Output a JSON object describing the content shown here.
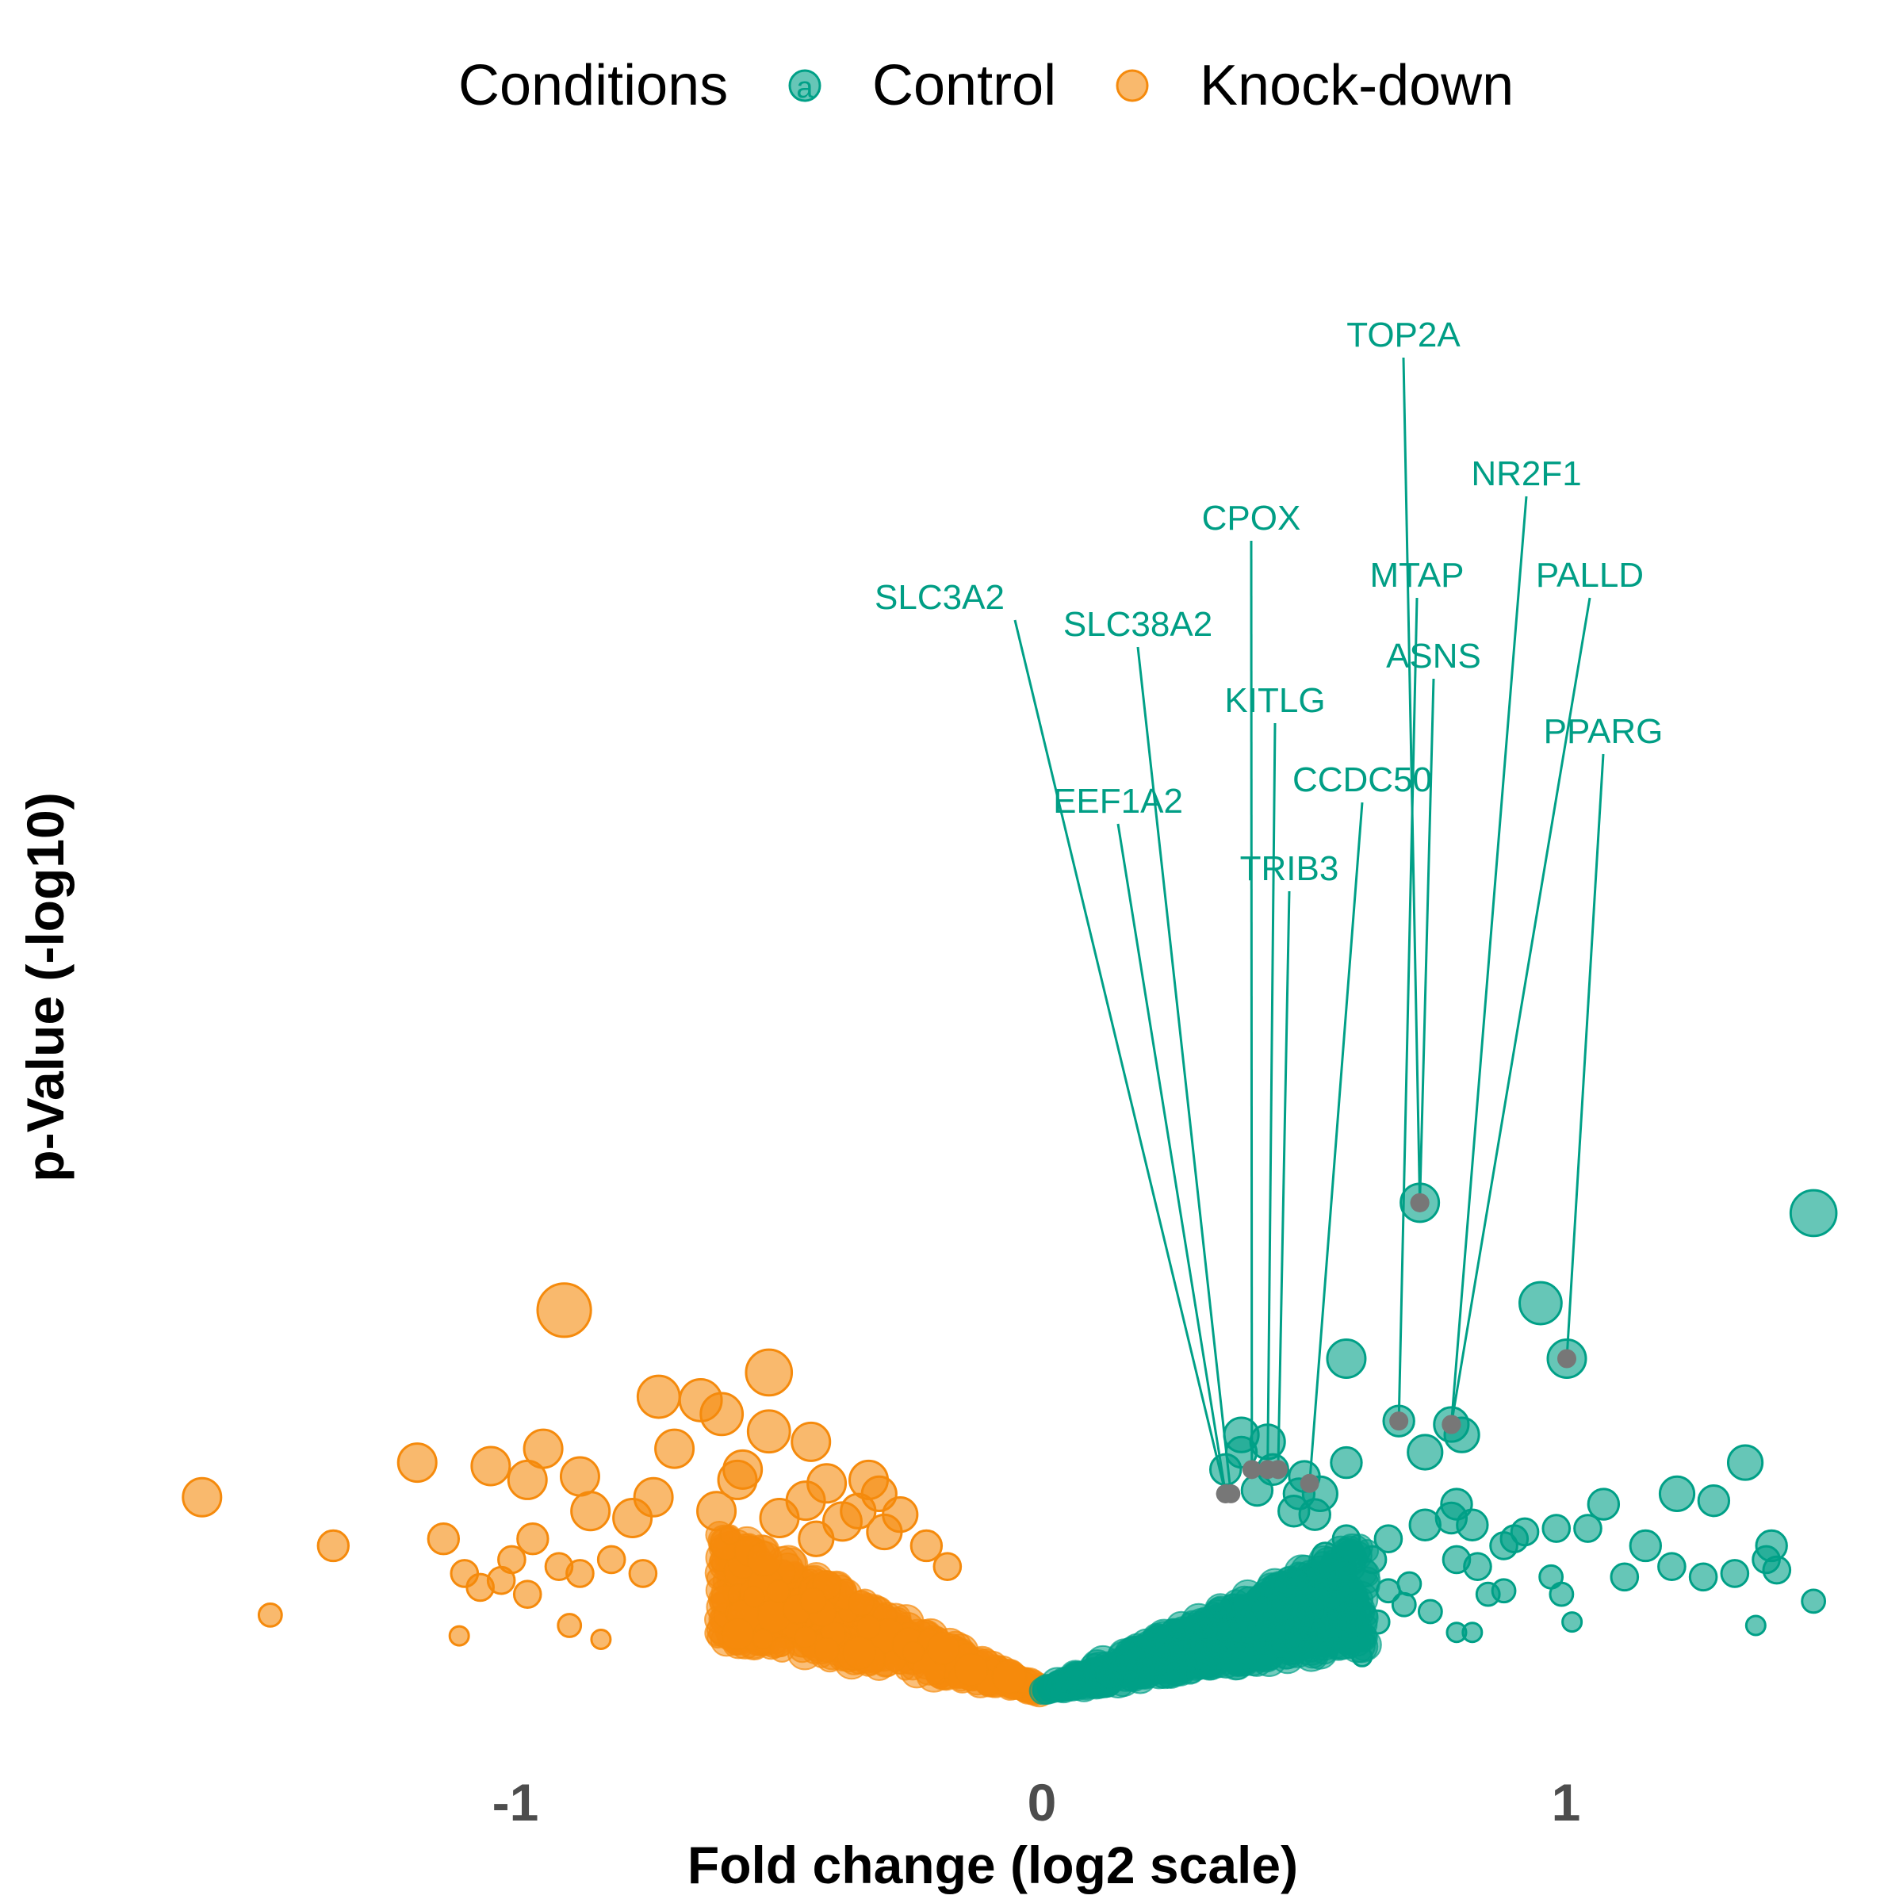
{
  "chart_data": {
    "type": "scatter",
    "title": "",
    "xlabel": "Fold change (log2 scale)",
    "ylabel": "p-Value (-log10)",
    "xlim": [
      -1.68,
      1.58
    ],
    "ylim": [
      0,
      10.6
    ],
    "x_ticks": [
      "-1",
      "0",
      "1"
    ],
    "grid": false,
    "legend": {
      "title": "Conditions",
      "position": "top",
      "key_glyph": "a",
      "entries": [
        {
          "name": "Control",
          "color": "#00A087"
        },
        {
          "name": "Knock-down",
          "color": "#F58A0C"
        }
      ]
    },
    "series": [
      {
        "name": "Knock-down",
        "color": "#F58A0C",
        "points": [
          [
            -0.91,
            5.5,
            1.4
          ],
          [
            -1.6,
            2.8,
            1.0
          ],
          [
            -1.19,
            3.3,
            1.0
          ],
          [
            -1.05,
            3.25,
            1.0
          ],
          [
            -0.52,
            4.6,
            1.2
          ],
          [
            -0.73,
            4.25,
            1.1
          ],
          [
            -0.65,
            4.2,
            1.1
          ],
          [
            -0.61,
            4.0,
            1.1
          ],
          [
            -0.44,
            3.6,
            1.0
          ],
          [
            -0.98,
            3.05,
            1.0
          ],
          [
            -0.52,
            3.75,
            1.1
          ],
          [
            -0.7,
            3.5,
            1.0
          ],
          [
            -0.57,
            3.2,
            1.0
          ],
          [
            -0.41,
            3.0,
            1.0
          ],
          [
            -0.95,
            3.5,
            1.0
          ],
          [
            -0.88,
            3.1,
            1.0
          ],
          [
            -0.74,
            2.8,
            1.0
          ],
          [
            -0.86,
            2.6,
            1.0
          ],
          [
            -1.35,
            2.1,
            0.8
          ],
          [
            -1.14,
            2.2,
            0.8
          ],
          [
            -0.97,
            2.2,
            0.8
          ],
          [
            -0.78,
            2.5,
            1.0
          ],
          [
            -0.62,
            2.6,
            1.0
          ],
          [
            -1.01,
            1.9,
            0.7
          ],
          [
            -0.92,
            1.8,
            0.7
          ],
          [
            -1.1,
            1.7,
            0.7
          ],
          [
            -1.07,
            1.5,
            0.7
          ],
          [
            -0.98,
            1.4,
            0.7
          ],
          [
            -1.03,
            1.6,
            0.7
          ],
          [
            -0.88,
            1.7,
            0.7
          ],
          [
            -0.82,
            1.9,
            0.7
          ],
          [
            -0.76,
            1.7,
            0.7
          ],
          [
            -1.47,
            1.1,
            0.6
          ],
          [
            -1.11,
            0.8,
            0.5
          ],
          [
            -0.9,
            0.95,
            0.6
          ],
          [
            -0.84,
            0.75,
            0.5
          ],
          [
            -0.58,
            3.05,
            1.0
          ],
          [
            -0.45,
            2.75,
            1.0
          ],
          [
            -0.38,
            2.45,
            1.0
          ],
          [
            -0.43,
            2.2,
            0.9
          ],
          [
            -0.5,
            2.5,
            1.0
          ],
          [
            -0.33,
            3.05,
            1.0
          ],
          [
            -0.31,
            2.85,
            0.9
          ],
          [
            -0.22,
            2.1,
            0.8
          ],
          [
            -0.18,
            1.8,
            0.7
          ],
          [
            -0.35,
            2.6,
            0.9
          ],
          [
            -0.3,
            2.3,
            0.9
          ],
          [
            -0.27,
            2.55,
            0.9
          ]
        ],
        "labels": []
      },
      {
        "name": "Control",
        "color": "#00A087",
        "points": [
          [
            1.47,
            6.9,
            1.2
          ],
          [
            0.95,
            5.6,
            1.1
          ],
          [
            0.72,
            7.05,
            1.0
          ],
          [
            0.58,
            4.8,
            1.0
          ],
          [
            1.0,
            4.8,
            1.0
          ],
          [
            0.78,
            3.85,
            0.9
          ],
          [
            0.8,
            3.7,
            0.9
          ],
          [
            0.68,
            3.9,
            0.8
          ],
          [
            0.73,
            3.45,
            0.9
          ],
          [
            0.58,
            3.3,
            0.8
          ],
          [
            0.5,
            3.1,
            0.8
          ],
          [
            1.34,
            3.3,
            0.9
          ],
          [
            1.21,
            2.85,
            0.9
          ],
          [
            1.28,
            2.75,
            0.8
          ],
          [
            1.07,
            2.7,
            0.8
          ],
          [
            0.79,
            2.7,
            0.8
          ],
          [
            0.78,
            2.5,
            0.8
          ],
          [
            0.73,
            2.4,
            0.8
          ],
          [
            0.82,
            2.4,
            0.8
          ],
          [
            0.66,
            2.2,
            0.7
          ],
          [
            0.58,
            2.2,
            0.7
          ],
          [
            0.53,
            2.85,
            0.9
          ],
          [
            0.49,
            2.85,
            0.8
          ],
          [
            0.41,
            2.9,
            0.8
          ],
          [
            0.35,
            3.2,
            0.8
          ],
          [
            0.38,
            3.45,
            0.8
          ],
          [
            0.43,
            3.6,
            0.9
          ],
          [
            0.38,
            3.7,
            0.9
          ],
          [
            0.44,
            3.2,
            0.8
          ],
          [
            0.52,
            2.55,
            0.8
          ],
          [
            0.48,
            2.6,
            0.8
          ],
          [
            1.39,
            2.1,
            0.8
          ],
          [
            1.15,
            2.1,
            0.8
          ],
          [
            1.04,
            2.35,
            0.7
          ],
          [
            0.98,
            2.35,
            0.7
          ],
          [
            0.9,
            2.2,
            0.7
          ],
          [
            0.88,
            2.1,
            0.7
          ],
          [
            0.92,
            2.3,
            0.7
          ],
          [
            1.32,
            1.7,
            0.7
          ],
          [
            1.38,
            1.9,
            0.7
          ],
          [
            1.4,
            1.75,
            0.7
          ],
          [
            1.2,
            1.8,
            0.7
          ],
          [
            1.26,
            1.65,
            0.7
          ],
          [
            1.11,
            1.65,
            0.7
          ],
          [
            0.99,
            1.4,
            0.6
          ],
          [
            0.97,
            1.65,
            0.6
          ],
          [
            0.88,
            1.45,
            0.6
          ],
          [
            0.83,
            1.8,
            0.7
          ],
          [
            0.79,
            1.9,
            0.7
          ],
          [
            0.85,
            1.4,
            0.6
          ],
          [
            1.47,
            1.3,
            0.6
          ],
          [
            1.36,
            0.95,
            0.5
          ],
          [
            1.01,
            1.0,
            0.5
          ],
          [
            0.82,
            0.85,
            0.5
          ],
          [
            0.79,
            0.85,
            0.5
          ],
          [
            0.74,
            1.15,
            0.6
          ],
          [
            0.66,
            1.45,
            0.6
          ],
          [
            0.69,
            1.25,
            0.6
          ],
          [
            0.61,
            0.5,
            0.5
          ],
          [
            0.58,
            0.7,
            0.6
          ],
          [
            0.64,
            1.0,
            0.6
          ],
          [
            0.56,
            1.6,
            0.6
          ],
          [
            0.63,
            1.9,
            0.7
          ],
          [
            0.7,
            1.55,
            0.6
          ],
          [
            0.54,
            1.95,
            0.7
          ]
        ],
        "labels": [
          {
            "gene": "TOP2A",
            "x": 0.72,
            "y": 7.05
          },
          {
            "gene": "NR2F1",
            "x": 0.78,
            "y": 3.85
          },
          {
            "gene": "CPOX",
            "x": 0.4,
            "y": 3.2
          },
          {
            "gene": "MTAP",
            "x": 0.68,
            "y": 3.9
          },
          {
            "gene": "PALLD",
            "x": 0.78,
            "y": 3.85
          },
          {
            "gene": "SLC3A2",
            "x": 0.35,
            "y": 2.85
          },
          {
            "gene": "SLC38A2",
            "x": 0.36,
            "y": 2.85
          },
          {
            "gene": "ASNS",
            "x": 0.72,
            "y": 7.05
          },
          {
            "gene": "KITLG",
            "x": 0.43,
            "y": 3.2
          },
          {
            "gene": "PPARG",
            "x": 1.0,
            "y": 4.8
          },
          {
            "gene": "CCDC50",
            "x": 0.51,
            "y": 3.0
          },
          {
            "gene": "EEF1A2",
            "x": 0.35,
            "y": 2.85
          },
          {
            "gene": "TRIB3",
            "x": 0.45,
            "y": 3.2
          }
        ]
      }
    ]
  }
}
